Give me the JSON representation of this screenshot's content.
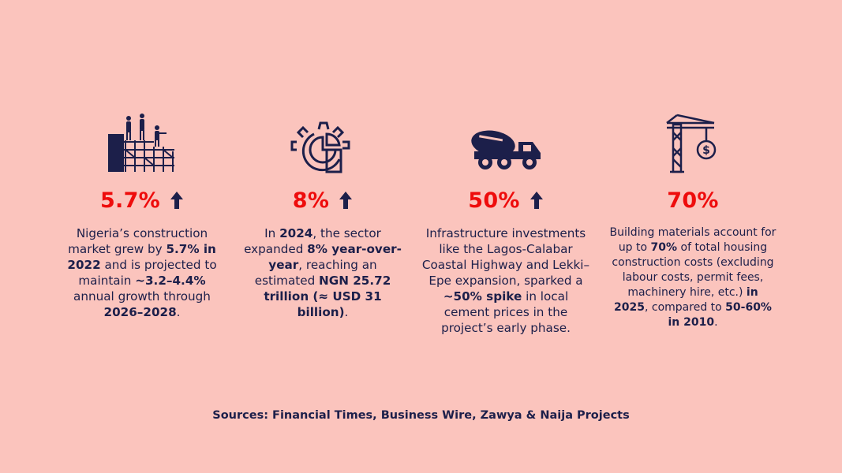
{
  "stats": [
    {
      "icon": "construction-workers-scaffold-icon",
      "value": "5.7%",
      "arrow": "up-arrow-icon",
      "desc": [
        {
          "t": "Nigeria’s construction market grew by ",
          "b": false
        },
        {
          "t": "5.7% in 2022",
          "b": true
        },
        {
          "t": " and is projected to maintain ",
          "b": false
        },
        {
          "t": "~3.2–4.4%",
          "b": true
        },
        {
          "t": " annual growth through ",
          "b": false
        },
        {
          "t": "2026–2028",
          "b": true
        },
        {
          "t": ".",
          "b": false
        }
      ]
    },
    {
      "icon": "gear-pie-chart-icon",
      "value": "8%",
      "arrow": "up-arrow-icon",
      "desc": [
        {
          "t": "In ",
          "b": false
        },
        {
          "t": "2024",
          "b": true
        },
        {
          "t": ", the sector expanded ",
          "b": false
        },
        {
          "t": "8% year-over-year",
          "b": true
        },
        {
          "t": ", reaching an estimated ",
          "b": false
        },
        {
          "t": "NGN 25.72 trillion (≈ USD 31 billion)",
          "b": true
        },
        {
          "t": ".",
          "b": false
        }
      ]
    },
    {
      "icon": "cement-mixer-truck-icon",
      "value": "50%",
      "arrow": "up-arrow-icon",
      "desc": [
        {
          "t": "Infrastructure investments like the Lagos-Calabar Coastal Highway and Lekki–Epe expansion, sparked a ",
          "b": false
        },
        {
          "t": "~50% spike",
          "b": true
        },
        {
          "t": " in local cement prices in the project’s early phase.",
          "b": false
        }
      ]
    },
    {
      "icon": "crane-money-icon",
      "value": "70%",
      "arrow": "",
      "desc": [
        {
          "t": "Building materials account for up to ",
          "b": false
        },
        {
          "t": "70%",
          "b": true
        },
        {
          "t": " of total housing construction costs (excluding labour costs, permit fees, machinery hire, etc.) ",
          "b": false
        },
        {
          "t": "in 2025",
          "b": true
        },
        {
          "t": ", compared to ",
          "b": false
        },
        {
          "t": "50-60% in 2010",
          "b": true
        },
        {
          "t": ".",
          "b": false
        }
      ]
    }
  ],
  "sources": "Sources: Financial Times, Business Wire, Zawya & Naija Projects",
  "colors": {
    "background": "#fbc4bd",
    "accent": "#ee0c0c",
    "navy": "#1c1f4a"
  }
}
